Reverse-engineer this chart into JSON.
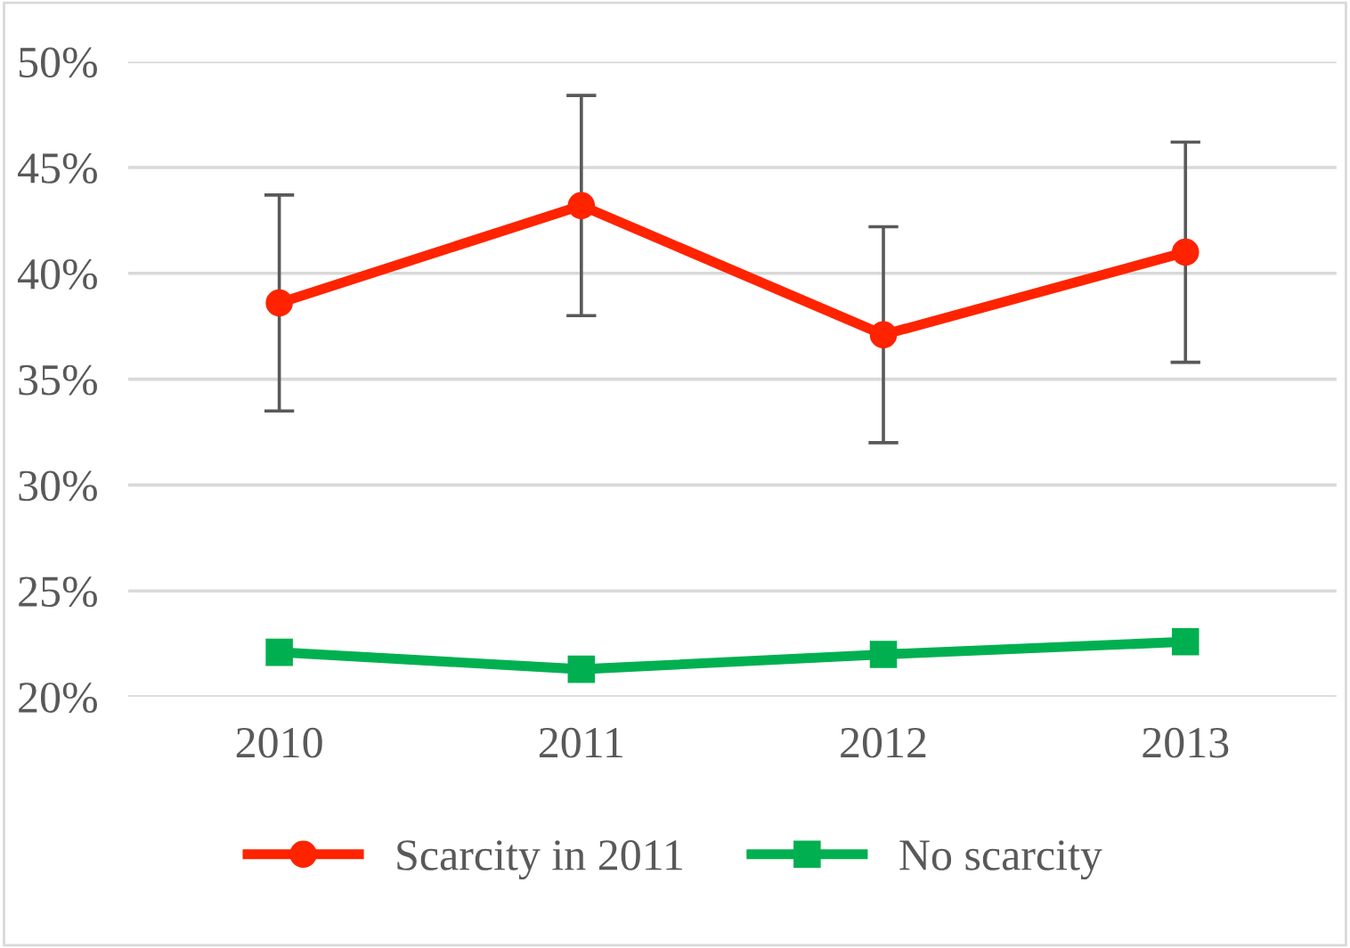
{
  "chart_data": {
    "type": "line",
    "categories": [
      "2010",
      "2011",
      "2012",
      "2013"
    ],
    "series": [
      {
        "name": "Scarcity in 2011",
        "color": "#ff2300",
        "marker": "circle",
        "values": [
          38.6,
          43.2,
          37.1,
          41.0
        ],
        "errors": [
          5.1,
          5.2,
          5.1,
          5.2
        ]
      },
      {
        "name": "No scarcity",
        "color": "#00b050",
        "marker": "square",
        "values": [
          22.1,
          21.3,
          22.0,
          22.6
        ]
      }
    ],
    "ylim": [
      20,
      50
    ],
    "yticks": [
      {
        "value": 20,
        "label": "20%"
      },
      {
        "value": 25,
        "label": "25%"
      },
      {
        "value": 30,
        "label": "30%"
      },
      {
        "value": 35,
        "label": "35%"
      },
      {
        "value": 40,
        "label": "40%"
      },
      {
        "value": 45,
        "label": "45%"
      },
      {
        "value": 50,
        "label": "50%"
      }
    ],
    "grid": "y",
    "legend": "bottom",
    "line_style": "solid"
  }
}
